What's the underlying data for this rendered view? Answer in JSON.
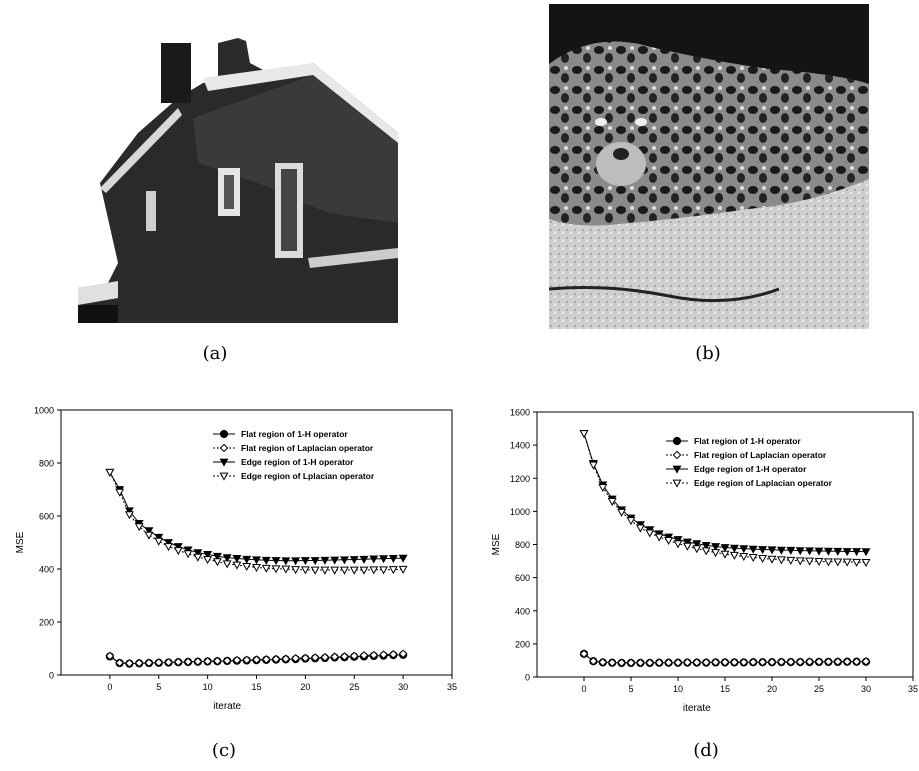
{
  "captions": {
    "a": "(a)",
    "b": "(b)",
    "c": "(c)",
    "d": "(d)"
  },
  "photos": {
    "a": {
      "icon": "house-photo"
    },
    "b": {
      "icon": "leopard-photo"
    }
  },
  "chart_data": [
    {
      "type": "line",
      "xlabel": "iterate",
      "ylabel": "MSE",
      "xlim": [
        -5,
        35
      ],
      "ylim": [
        0,
        1000
      ],
      "xticks": [
        0,
        5,
        10,
        15,
        20,
        25,
        30,
        35
      ],
      "yticks": [
        0,
        200,
        400,
        600,
        800,
        1000
      ],
      "legend_position": "top-right",
      "x": [
        0,
        1,
        2,
        3,
        4,
        5,
        6,
        7,
        8,
        9,
        10,
        11,
        12,
        13,
        14,
        15,
        16,
        17,
        18,
        19,
        20,
        21,
        22,
        23,
        24,
        25,
        26,
        27,
        28,
        29,
        30
      ],
      "series": [
        {
          "name": "Flat region of 1-H operator",
          "marker": "filled-circle",
          "values": [
            70,
            45,
            43,
            44,
            45,
            46,
            47,
            48,
            49,
            50,
            51,
            52,
            53,
            54,
            55,
            56,
            57,
            58,
            59,
            60,
            62,
            63,
            64,
            66,
            67,
            69,
            70,
            72,
            73,
            75,
            76
          ]
        },
        {
          "name": "Flat region of Laplacian operator",
          "marker": "open-diamond",
          "values": [
            72,
            46,
            44,
            45,
            46,
            47,
            48,
            49,
            50,
            51,
            52,
            53,
            54,
            56,
            57,
            58,
            59,
            60,
            61,
            63,
            64,
            66,
            67,
            69,
            70,
            72,
            74,
            75,
            77,
            78,
            80
          ]
        },
        {
          "name": "Edge region of 1-H operator",
          "marker": "filled-triangle-down",
          "values": [
            765,
            700,
            620,
            572,
            545,
            520,
            500,
            485,
            472,
            462,
            455,
            448,
            443,
            440,
            437,
            435,
            433,
            432,
            431,
            431,
            432,
            432,
            433,
            434,
            435,
            436,
            437,
            438,
            439,
            440,
            441
          ]
        },
        {
          "name": "Edge region of Lplacian operator",
          "marker": "open-triangle-down",
          "values": [
            765,
            690,
            605,
            560,
            528,
            505,
            485,
            470,
            458,
            445,
            436,
            428,
            420,
            415,
            410,
            406,
            403,
            401,
            400,
            398,
            397,
            396,
            396,
            396,
            396,
            396,
            396,
            397,
            397,
            398,
            399
          ]
        }
      ]
    },
    {
      "type": "line",
      "xlabel": "iterate",
      "ylabel": "MSE",
      "xlim": [
        -5,
        35
      ],
      "ylim": [
        0,
        1600
      ],
      "xticks": [
        0,
        5,
        10,
        15,
        20,
        25,
        30,
        35
      ],
      "yticks": [
        0,
        200,
        400,
        600,
        800,
        1000,
        1200,
        1400,
        1600
      ],
      "legend_position": "top-right",
      "x": [
        0,
        1,
        2,
        3,
        4,
        5,
        6,
        7,
        8,
        9,
        10,
        11,
        12,
        13,
        14,
        15,
        16,
        17,
        18,
        19,
        20,
        21,
        22,
        23,
        24,
        25,
        26,
        27,
        28,
        29,
        30
      ],
      "series": [
        {
          "name": "Flat region of 1-H operator",
          "marker": "filled-circle",
          "values": [
            140,
            95,
            88,
            86,
            85,
            85,
            85,
            85,
            86,
            86,
            86,
            87,
            87,
            87,
            88,
            88,
            88,
            88,
            89,
            89,
            89,
            90,
            90,
            90,
            90,
            91,
            91,
            91,
            92,
            92,
            92
          ]
        },
        {
          "name": "Flat region of Laplacian operator",
          "marker": "open-diamond",
          "values": [
            140,
            96,
            89,
            87,
            86,
            86,
            86,
            86,
            87,
            87,
            87,
            88,
            88,
            88,
            89,
            89,
            89,
            89,
            90,
            90,
            90,
            91,
            91,
            91,
            92,
            92,
            92,
            93,
            93,
            93,
            94
          ]
        },
        {
          "name": "Edge region of 1-H operator",
          "marker": "filled-triangle-down",
          "values": [
            1470,
            1290,
            1160,
            1075,
            1010,
            960,
            920,
            890,
            865,
            845,
            830,
            815,
            805,
            795,
            788,
            782,
            778,
            775,
            772,
            770,
            768,
            766,
            765,
            763,
            762,
            761,
            760,
            759,
            758,
            758,
            757
          ]
        },
        {
          "name": "Edge region of Laplacian operator",
          "marker": "open-triangle-down",
          "values": [
            1470,
            1280,
            1145,
            1060,
            995,
            945,
            900,
            870,
            845,
            825,
            805,
            790,
            775,
            762,
            752,
            742,
            735,
            728,
            722,
            716,
            712,
            708,
            705,
            702,
            700,
            698,
            696,
            695,
            694,
            693,
            692
          ]
        }
      ]
    }
  ]
}
